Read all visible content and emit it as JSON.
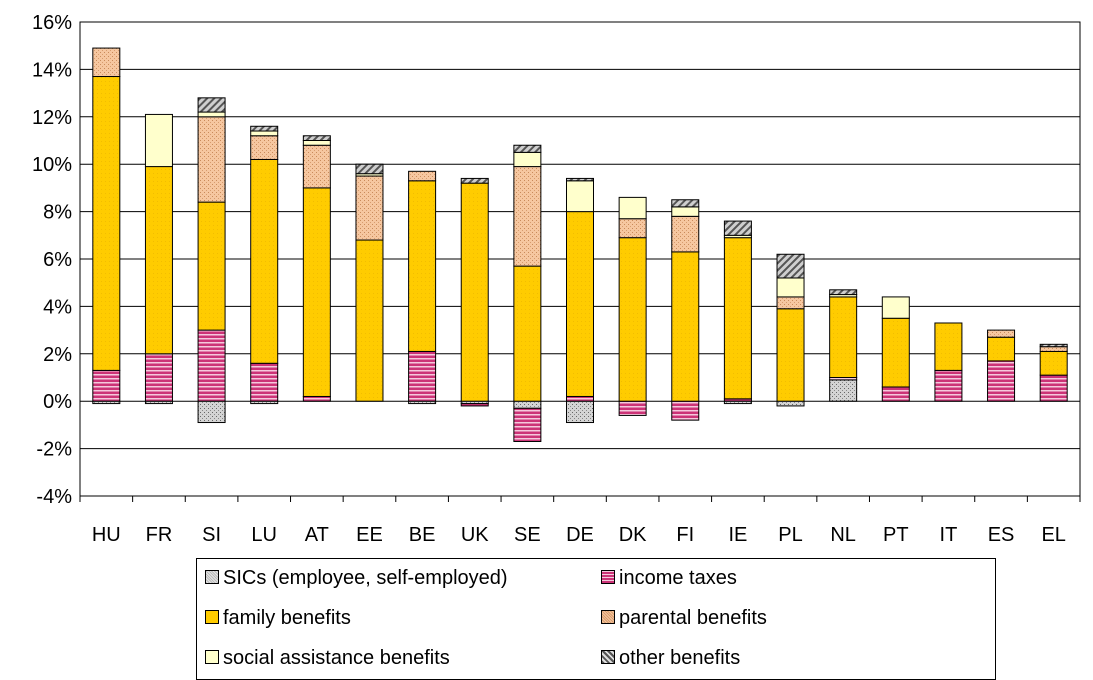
{
  "chart_data": {
    "type": "bar",
    "stacked": true,
    "categories": [
      "HU",
      "FR",
      "SI",
      "LU",
      "AT",
      "EE",
      "BE",
      "UK",
      "SE",
      "DE",
      "DK",
      "FI",
      "IE",
      "PL",
      "NL",
      "PT",
      "IT",
      "ES",
      "EL"
    ],
    "yticks": [
      "16%",
      "14%",
      "12%",
      "10%",
      "8%",
      "6%",
      "4%",
      "2%",
      "0%",
      "-2%",
      "-4%"
    ],
    "ylim": [
      -4,
      16
    ],
    "grid": true,
    "legend_position": "bottom",
    "series": [
      {
        "key": "sics",
        "name": "SICs (employee, self-employed)",
        "color": "#cfcfcf",
        "pattern": "dots",
        "values": [
          -0.1,
          -0.1,
          -0.9,
          -0.1,
          0,
          0,
          -0.1,
          -0.1,
          -0.3,
          -0.9,
          0,
          0,
          -0.1,
          -0.2,
          0.9,
          0,
          0,
          0,
          0
        ]
      },
      {
        "key": "tax",
        "name": "income taxes",
        "color": "#cc3377",
        "pattern": "hstripe",
        "values": [
          1.3,
          2.0,
          3.0,
          1.6,
          0.2,
          0,
          2.1,
          -0.1,
          -1.4,
          0.2,
          -0.6,
          -0.8,
          0.1,
          0,
          0.1,
          0.6,
          1.3,
          1.7,
          1.1
        ]
      },
      {
        "key": "fam",
        "name": "family benefits",
        "color": "#ffcc00",
        "pattern": "solid",
        "values": [
          12.4,
          7.9,
          5.4,
          8.6,
          8.8,
          6.8,
          7.2,
          9.2,
          5.7,
          7.8,
          6.9,
          6.3,
          6.8,
          3.9,
          3.4,
          2.9,
          2.0,
          1.0,
          1.0
        ]
      },
      {
        "key": "par",
        "name": "parental benefits",
        "color": "#f7c59a",
        "pattern": "dots",
        "values": [
          1.2,
          0,
          3.6,
          1.0,
          1.8,
          2.7,
          0.4,
          0,
          4.2,
          0,
          0.8,
          1.5,
          0,
          0.5,
          0,
          0,
          0,
          0.3,
          0.2
        ]
      },
      {
        "key": "soc",
        "name": "social assistance benefits",
        "color": "#ffffcc",
        "pattern": "solid",
        "values": [
          0,
          2.2,
          0.2,
          0.2,
          0.2,
          0.1,
          0,
          0,
          0.6,
          1.3,
          0.9,
          0.4,
          0.1,
          0.8,
          0.1,
          0.9,
          0,
          0,
          0
        ]
      },
      {
        "key": "oth",
        "name": "other benefits",
        "color": "#888888",
        "pattern": "diag",
        "values": [
          0,
          0,
          0.6,
          0.2,
          0.2,
          0.4,
          0,
          0.2,
          0.3,
          0.1,
          0,
          0.3,
          0.6,
          1.0,
          0.2,
          0,
          0,
          0,
          0.1
        ]
      }
    ]
  },
  "legend": {
    "sics": "SICs (employee, self-employed)",
    "tax": "income taxes",
    "fam": "family benefits",
    "par": "parental benefits",
    "soc": "social assistance benefits",
    "oth": "other benefits"
  }
}
